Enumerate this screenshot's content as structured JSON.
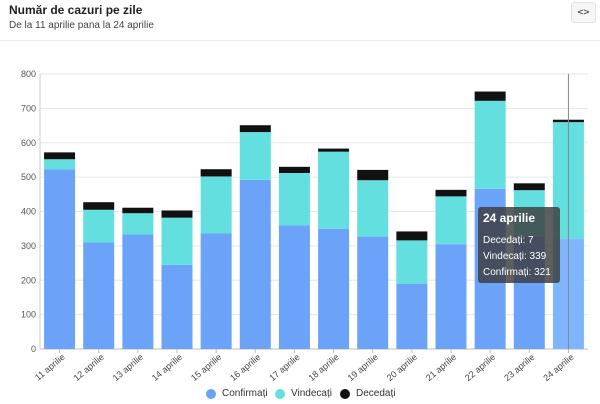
{
  "header": {
    "title": "Număr de cazuri pe zile",
    "subtitle": "De la 11 aprilie pana la 24 aprilie",
    "code_icon": "<>"
  },
  "tooltip": {
    "title": "24 aprilie",
    "lines": [
      "Decedați: 7",
      "Vindecați: 339",
      "Confirmați: 321"
    ]
  },
  "colors": {
    "confirmati": "#6aa3f8",
    "vindecati": "#63dfe0",
    "decedati": "#111111",
    "hover": "#7fb5ff"
  },
  "chart_data": {
    "type": "bar",
    "stacked": true,
    "categories": [
      "11 aprilie",
      "12 aprilie",
      "13 aprilie",
      "14 aprilie",
      "15 aprilie",
      "16 aprilie",
      "17 aprilie",
      "18 aprilie",
      "19 aprilie",
      "20 aprilie",
      "21 aprilie",
      "22 aprilie",
      "23 aprilie",
      "24 aprilie"
    ],
    "series": [
      {
        "name": "Confirmați",
        "values": [
          523,
          310,
          333,
          245,
          337,
          492,
          360,
          350,
          327,
          190,
          305,
          466,
          327,
          321
        ]
      },
      {
        "name": "Vindecați",
        "values": [
          29,
          95,
          62,
          137,
          165,
          139,
          152,
          224,
          164,
          126,
          139,
          256,
          135,
          339
        ]
      },
      {
        "name": "Decedați",
        "values": [
          20,
          22,
          16,
          21,
          21,
          20,
          18,
          9,
          30,
          26,
          19,
          27,
          20,
          7
        ]
      }
    ],
    "ylim": [
      0,
      800
    ],
    "yticks": [
      0,
      100,
      200,
      300,
      400,
      500,
      600,
      700,
      800
    ],
    "grid": true,
    "legend": "bottom",
    "hover_category": "24 aprilie"
  }
}
